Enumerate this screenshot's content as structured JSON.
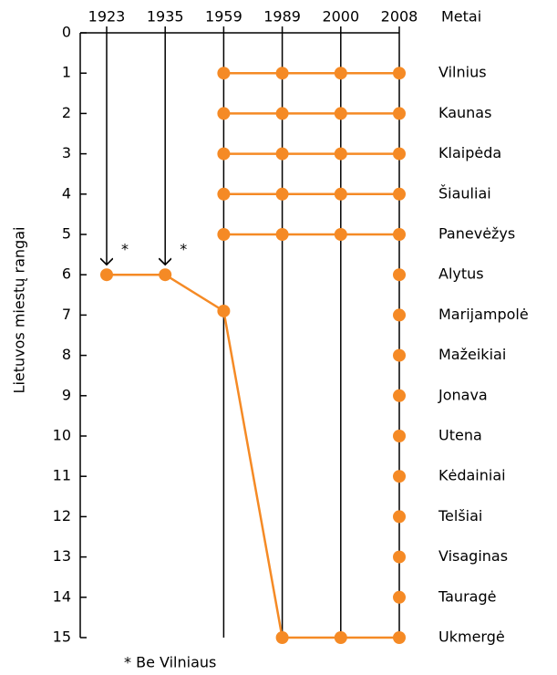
{
  "chart_data": {
    "type": "line",
    "ylabel": "Lietuvos miestų rangai",
    "xlabel": "Metai",
    "categories": [
      "1923",
      "1935",
      "1959",
      "1989",
      "2000",
      "2008"
    ],
    "ylim": [
      0,
      15
    ],
    "yticks": [
      0,
      1,
      2,
      3,
      4,
      5,
      6,
      7,
      8,
      9,
      10,
      11,
      12,
      13,
      14,
      15
    ],
    "yinverted": true,
    "xgrid": true,
    "color": "#f58a25",
    "series": [
      {
        "name": "Vilnius",
        "values": [
          null,
          null,
          1,
          1,
          1,
          1
        ]
      },
      {
        "name": "Kaunas",
        "values": [
          null,
          null,
          2,
          2,
          2,
          2
        ]
      },
      {
        "name": "Klaipėda",
        "values": [
          null,
          null,
          3,
          3,
          3,
          3
        ]
      },
      {
        "name": "Šiauliai",
        "values": [
          null,
          null,
          4,
          4,
          4,
          4
        ]
      },
      {
        "name": "Panevėžys",
        "values": [
          null,
          null,
          5,
          5,
          5,
          5
        ]
      },
      {
        "name": "Alytus",
        "values": [
          null,
          null,
          null,
          null,
          null,
          6
        ]
      },
      {
        "name": "Marijampolė",
        "values": [
          null,
          null,
          null,
          null,
          null,
          7
        ]
      },
      {
        "name": "Mažeikiai",
        "values": [
          null,
          null,
          null,
          null,
          null,
          8
        ]
      },
      {
        "name": "Jonava",
        "values": [
          null,
          null,
          null,
          null,
          null,
          9
        ]
      },
      {
        "name": "Utena",
        "values": [
          null,
          null,
          null,
          null,
          null,
          10
        ]
      },
      {
        "name": "Kėdainiai",
        "values": [
          null,
          null,
          null,
          null,
          null,
          11
        ]
      },
      {
        "name": "Telšiai",
        "values": [
          null,
          null,
          null,
          null,
          null,
          12
        ]
      },
      {
        "name": "Visaginas",
        "values": [
          null,
          null,
          null,
          null,
          null,
          13
        ]
      },
      {
        "name": "Tauragė",
        "values": [
          null,
          null,
          null,
          null,
          null,
          14
        ]
      },
      {
        "name": "Ukmergė",
        "values": [
          6,
          6,
          6.9,
          15,
          15,
          15
        ]
      }
    ],
    "annotations": [
      {
        "x": "1923",
        "text": "*"
      },
      {
        "x": "1935",
        "text": "*"
      }
    ],
    "footnote": "* Be Vilniaus"
  }
}
